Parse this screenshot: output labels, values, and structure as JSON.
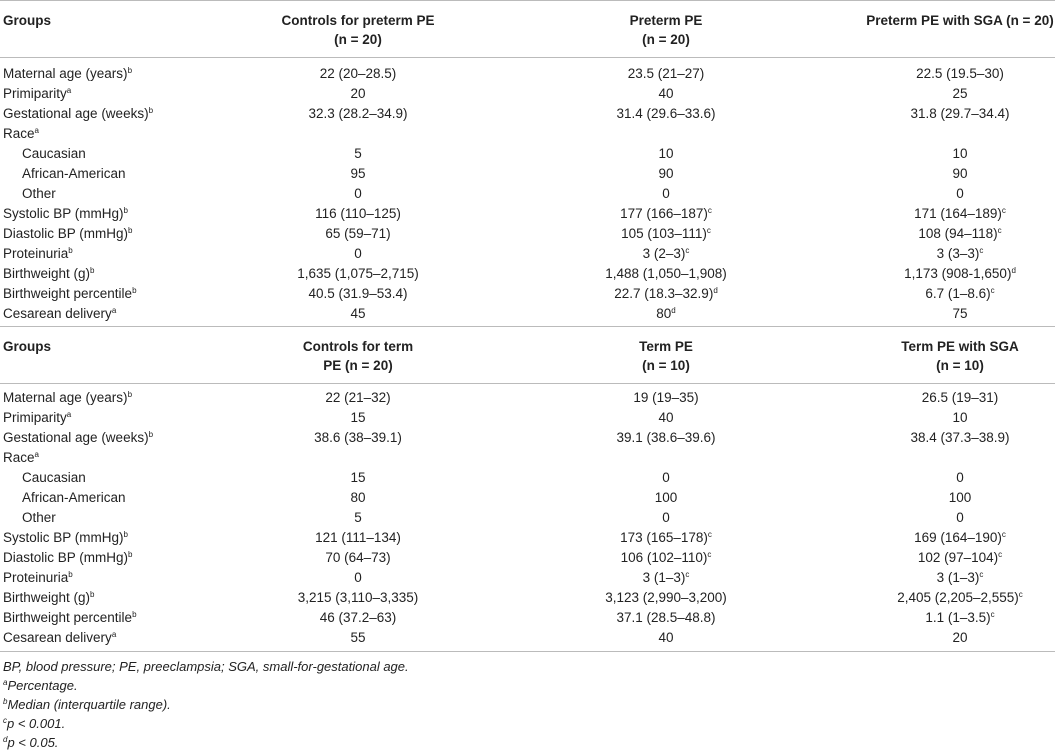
{
  "sections": [
    {
      "header": {
        "groups": "Groups",
        "col1_l1": "Controls for preterm PE",
        "col1_l2": "(n = 20)",
        "col2_l1": "Preterm PE",
        "col2_l2": "(n = 20)",
        "col3_l1": "Preterm PE with SGA (n = 20)",
        "col3_l2": ""
      },
      "rows": [
        {
          "label": "Maternal age (years)",
          "sup": "b",
          "indent": false,
          "v": [
            "22 (20–28.5)",
            "23.5 (21–27)",
            "22.5 (19.5–30)"
          ],
          "s": [
            "",
            "",
            ""
          ]
        },
        {
          "label": "Primiparity",
          "sup": "a",
          "indent": false,
          "v": [
            "20",
            "40",
            "25"
          ],
          "s": [
            "",
            "",
            ""
          ]
        },
        {
          "label": "Gestational age (weeks)",
          "sup": "b",
          "indent": false,
          "v": [
            "32.3 (28.2–34.9)",
            "31.4 (29.6–33.6)",
            "31.8 (29.7–34.4)"
          ],
          "s": [
            "",
            "",
            ""
          ]
        },
        {
          "label": "Race",
          "sup": "a",
          "indent": false,
          "v": [
            "",
            "",
            ""
          ],
          "s": [
            "",
            "",
            ""
          ]
        },
        {
          "label": "Caucasian",
          "sup": "",
          "indent": true,
          "v": [
            "5",
            "10",
            "10"
          ],
          "s": [
            "",
            "",
            ""
          ]
        },
        {
          "label": "African-American",
          "sup": "",
          "indent": true,
          "v": [
            "95",
            "90",
            "90"
          ],
          "s": [
            "",
            "",
            ""
          ]
        },
        {
          "label": "Other",
          "sup": "",
          "indent": true,
          "v": [
            "0",
            "0",
            "0"
          ],
          "s": [
            "",
            "",
            ""
          ]
        },
        {
          "label": "Systolic BP (mmHg)",
          "sup": "b",
          "indent": false,
          "v": [
            "116 (110–125)",
            "177 (166–187)",
            "171 (164–189)"
          ],
          "s": [
            "",
            "c",
            "c"
          ]
        },
        {
          "label": "Diastolic BP (mmHg)",
          "sup": "b",
          "indent": false,
          "v": [
            "65 (59–71)",
            "105 (103–111)",
            "108 (94–118)"
          ],
          "s": [
            "",
            "c",
            "c"
          ]
        },
        {
          "label": "Proteinuria",
          "sup": "b",
          "indent": false,
          "v": [
            "0",
            "3 (2–3)",
            "3 (3–3)"
          ],
          "s": [
            "",
            "c",
            "c"
          ]
        },
        {
          "label": "Birthweight (g)",
          "sup": "b",
          "indent": false,
          "v": [
            "1,635 (1,075–2,715)",
            "1,488 (1,050–1,908)",
            "1,173 (908-1,650)"
          ],
          "s": [
            "",
            "",
            "d"
          ]
        },
        {
          "label": "Birthweight percentile",
          "sup": "b",
          "indent": false,
          "v": [
            "40.5 (31.9–53.4)",
            "22.7 (18.3–32.9)",
            "6.7 (1–8.6)"
          ],
          "s": [
            "",
            "d",
            "c"
          ]
        },
        {
          "label": "Cesarean delivery",
          "sup": "a",
          "indent": false,
          "v": [
            "45",
            "80",
            "75"
          ],
          "s": [
            "",
            "d",
            ""
          ]
        }
      ]
    },
    {
      "header": {
        "groups": "Groups",
        "col1_l1": "Controls for term",
        "col1_l2": "PE (n = 20)",
        "col2_l1": "Term PE",
        "col2_l2": "(n = 10)",
        "col3_l1": "Term PE with SGA",
        "col3_l2": "(n = 10)"
      },
      "rows": [
        {
          "label": "Maternal age (years)",
          "sup": "b",
          "indent": false,
          "v": [
            "22 (21–32)",
            "19 (19–35)",
            "26.5 (19–31)"
          ],
          "s": [
            "",
            "",
            ""
          ]
        },
        {
          "label": "Primiparity",
          "sup": "a",
          "indent": false,
          "v": [
            "15",
            "40",
            "10"
          ],
          "s": [
            "",
            "",
            ""
          ]
        },
        {
          "label": "Gestational age (weeks)",
          "sup": "b",
          "indent": false,
          "v": [
            "38.6 (38–39.1)",
            "39.1 (38.6–39.6)",
            "38.4 (37.3–38.9)"
          ],
          "s": [
            "",
            "",
            ""
          ]
        },
        {
          "label": "Race",
          "sup": "a",
          "indent": false,
          "v": [
            "",
            "",
            ""
          ],
          "s": [
            "",
            "",
            ""
          ]
        },
        {
          "label": "Caucasian",
          "sup": "",
          "indent": true,
          "v": [
            "15",
            "0",
            "0"
          ],
          "s": [
            "",
            "",
            ""
          ]
        },
        {
          "label": "African-American",
          "sup": "",
          "indent": true,
          "v": [
            "80",
            "100",
            "100"
          ],
          "s": [
            "",
            "",
            ""
          ]
        },
        {
          "label": "Other",
          "sup": "",
          "indent": true,
          "v": [
            "5",
            "0",
            "0"
          ],
          "s": [
            "",
            "",
            ""
          ]
        },
        {
          "label": "Systolic BP (mmHg)",
          "sup": "b",
          "indent": false,
          "v": [
            "121 (111–134)",
            "173 (165–178)",
            "169 (164–190)"
          ],
          "s": [
            "",
            "c",
            "c"
          ]
        },
        {
          "label": "Diastolic BP (mmHg)",
          "sup": "b",
          "indent": false,
          "v": [
            "70 (64–73)",
            "106 (102–110)",
            "102 (97–104)"
          ],
          "s": [
            "",
            "c",
            "c"
          ]
        },
        {
          "label": "Proteinuria",
          "sup": "b",
          "indent": false,
          "v": [
            "0",
            "3 (1–3)",
            "3 (1–3)"
          ],
          "s": [
            "",
            "c",
            "c"
          ]
        },
        {
          "label": "Birthweight (g)",
          "sup": "b",
          "indent": false,
          "v": [
            "3,215 (3,110–3,335)",
            "3,123 (2,990–3,200)",
            "2,405 (2,205–2,555)"
          ],
          "s": [
            "",
            "",
            "c"
          ]
        },
        {
          "label": "Birthweight percentile",
          "sup": "b",
          "indent": false,
          "v": [
            "46 (37.2–63)",
            "37.1 (28.5–48.8)",
            "1.1 (1–3.5)"
          ],
          "s": [
            "",
            "",
            "c"
          ]
        },
        {
          "label": "Cesarean delivery",
          "sup": "a",
          "indent": false,
          "v": [
            "55",
            "40",
            "20"
          ],
          "s": [
            "",
            "",
            ""
          ]
        }
      ]
    }
  ],
  "footnotes": [
    {
      "sup": "",
      "text": "BP, blood pressure; PE, preeclampsia; SGA, small-for-gestational age."
    },
    {
      "sup": "a",
      "text": "Percentage."
    },
    {
      "sup": "b",
      "text": "Median (interquartile range)."
    },
    {
      "sup": "c",
      "text": "p < 0.001."
    },
    {
      "sup": "d",
      "text": "p < 0.05."
    }
  ]
}
